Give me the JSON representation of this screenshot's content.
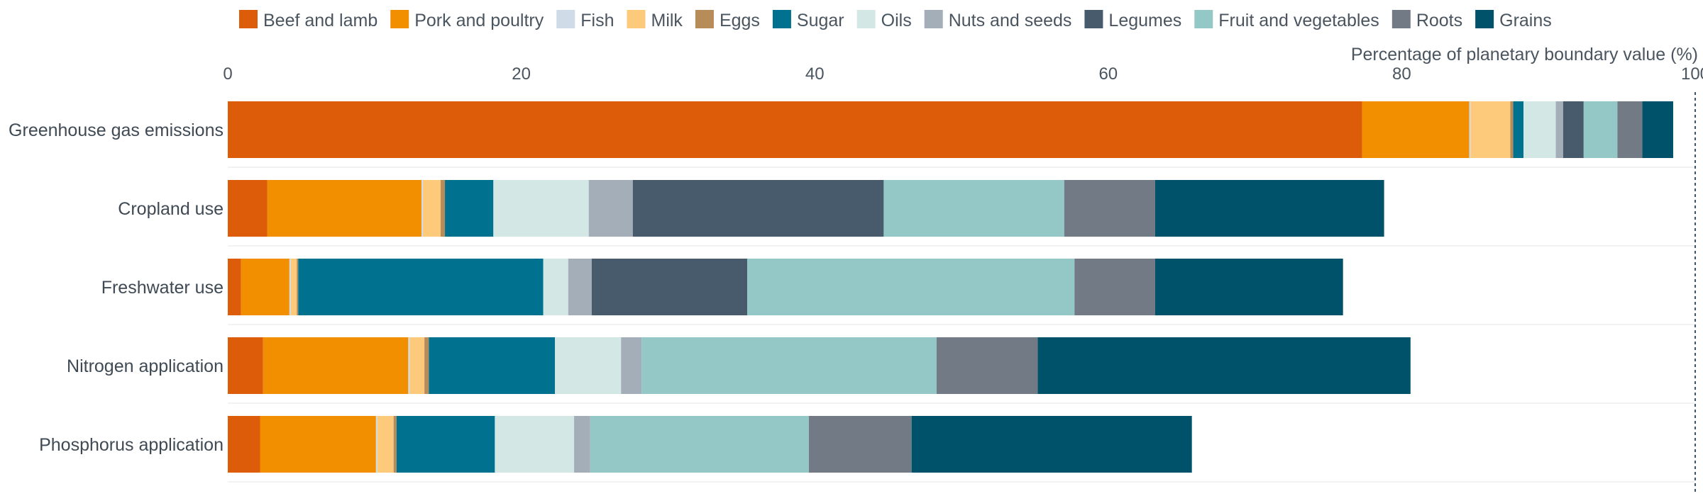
{
  "chart_data": {
    "type": "bar",
    "orientation": "horizontal",
    "stacked": true,
    "xlabel": "Percentage of planetary boundary value (%)",
    "ylabel": "",
    "xlim": [
      0,
      100
    ],
    "xticks": [
      0,
      20,
      40,
      60,
      80,
      100
    ],
    "xtick_labels": [
      "0",
      "20",
      "40",
      "60",
      "80",
      "100"
    ],
    "grid": true,
    "legend_position": "top",
    "reference_line": 100,
    "categories": [
      "Greenhouse gas emissions",
      "Cropland use",
      "Freshwater use",
      "Nitrogen application",
      "Phosphorus application"
    ],
    "series": [
      {
        "name": "Beef and lamb",
        "color": "#dd5c0a",
        "values": [
          77.3,
          2.7,
          0.9,
          2.4,
          2.2
        ]
      },
      {
        "name": "Pork and poultry",
        "color": "#f28f00",
        "values": [
          7.3,
          10.5,
          3.3,
          9.9,
          7.9
        ]
      },
      {
        "name": "Fish",
        "color": "#cfdbe6",
        "values": [
          0.1,
          0.1,
          0.1,
          0.1,
          0.1
        ]
      },
      {
        "name": "Milk",
        "color": "#fdc97a",
        "values": [
          2.7,
          1.2,
          0.4,
          1.0,
          1.1
        ]
      },
      {
        "name": "Eggs",
        "color": "#b78c59",
        "values": [
          0.2,
          0.3,
          0.1,
          0.3,
          0.2
        ]
      },
      {
        "name": "Sugar",
        "color": "#00718f",
        "values": [
          0.7,
          3.3,
          16.7,
          8.6,
          6.7
        ]
      },
      {
        "name": "Oils",
        "color": "#d3e7e5",
        "values": [
          2.2,
          6.5,
          1.7,
          4.5,
          5.4
        ]
      },
      {
        "name": "Nuts and seeds",
        "color": "#a3aeb9",
        "values": [
          0.5,
          3.0,
          1.6,
          1.4,
          1.1
        ]
      },
      {
        "name": "Legumes",
        "color": "#475b6c",
        "values": [
          1.4,
          17.1,
          10.6,
          0.0,
          0.0
        ]
      },
      {
        "name": "Fruit and vegetables",
        "color": "#94c8c6",
        "values": [
          2.3,
          12.3,
          22.3,
          20.1,
          14.9
        ]
      },
      {
        "name": "Roots",
        "color": "#727a85",
        "values": [
          1.7,
          6.2,
          5.5,
          6.9,
          7.0
        ]
      },
      {
        "name": "Grains",
        "color": "#00526b",
        "values": [
          2.1,
          15.6,
          12.8,
          25.4,
          19.1
        ]
      }
    ]
  }
}
